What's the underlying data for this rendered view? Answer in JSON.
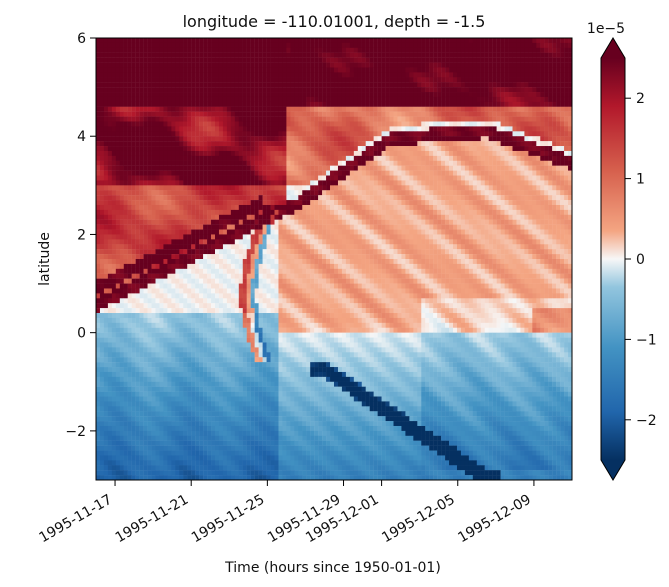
{
  "chart_data": {
    "type": "heatmap",
    "title": "longitude = -110.01001, depth = -1.5",
    "xlabel": "Time (hours since 1950-01-01)",
    "ylabel": "latitude",
    "x_tick_labels": [
      "1995-11-17",
      "1995-11-21",
      "1995-11-25",
      "1995-11-29",
      "1995-12-01",
      "1995-12-05",
      "1995-12-09"
    ],
    "y_tick_labels": [
      "6",
      "4",
      "2",
      "0",
      "−2"
    ],
    "ylim": [
      -3,
      6
    ],
    "xlim": [
      "1995-11-16",
      "1995-12-11"
    ],
    "colorbar": {
      "cmap": "RdBu_r",
      "min": -2.5e-05,
      "max": 2.5e-05,
      "tick_labels": [
        "2",
        "1",
        "0",
        "−1",
        "−2"
      ],
      "offset_label": "1e−5",
      "extend": "both"
    },
    "feature_summary": {
      "upper_left_band": "strong positive bands near 5 to 6 latitude",
      "front": "red positive front arcing from near 0.5 latitude to around 4 latitude",
      "lower_region": "mostly negative values below about 0 latitude",
      "dark_negative_streak": "strong negative diagonal band crossing from about -0.5 to -2.5 latitude near 1995-11-29 to 1995-12-05"
    }
  },
  "colors": {
    "axis": "#000000",
    "background": "#ffffff",
    "red_strong": "#67001f",
    "red_mid": "#d6604d",
    "red_light": "#f4a582",
    "neutral": "#f7f7f7",
    "blue_light": "#92c5de",
    "blue_mid": "#4393c3",
    "blue_strong": "#053061"
  }
}
